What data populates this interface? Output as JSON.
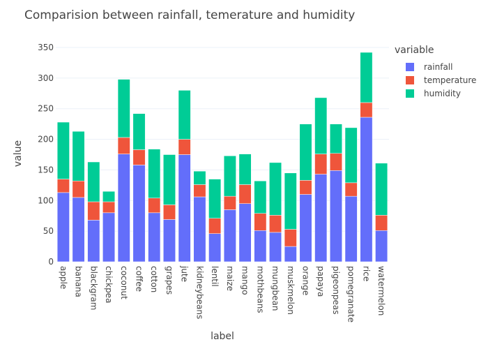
{
  "chart_data": {
    "type": "bar",
    "stacked": true,
    "title": "Comparision between rainfall, temerature and humidity",
    "xlabel": "label",
    "ylabel": "value",
    "ylim": [
      0,
      350
    ],
    "yticks": [
      0,
      50,
      100,
      150,
      200,
      250,
      300,
      350
    ],
    "grid": true,
    "legend_placement": "top-right",
    "legend_title": "variable",
    "categories": [
      "apple",
      "banana",
      "blackgram",
      "chickpea",
      "coconut",
      "coffee",
      "cotton",
      "grapes",
      "jute",
      "kidneybeans",
      "lentil",
      "maize",
      "mango",
      "mothbeans",
      "mungbean",
      "muskmelon",
      "orange",
      "papaya",
      "pigeonpeas",
      "pomegranate",
      "rice",
      "watermelon"
    ],
    "series": [
      {
        "name": "rainfall",
        "color": "#636efa",
        "values": [
          113,
          105,
          68,
          80,
          176,
          158,
          80,
          69,
          175,
          106,
          46,
          85,
          95,
          51,
          48,
          25,
          110,
          143,
          149,
          107,
          236,
          51
        ]
      },
      {
        "name": "temperature",
        "color": "#ef553b",
        "values": [
          22,
          27,
          30,
          18,
          27,
          25,
          24,
          24,
          25,
          20,
          25,
          22,
          31,
          28,
          28,
          28,
          23,
          33,
          28,
          22,
          24,
          25
        ]
      },
      {
        "name": "humidity",
        "color": "#00cc96",
        "values": [
          93,
          81,
          65,
          17,
          95,
          59,
          80,
          82,
          80,
          22,
          64,
          66,
          50,
          53,
          86,
          92,
          92,
          92,
          48,
          90,
          82,
          85
        ]
      }
    ]
  }
}
